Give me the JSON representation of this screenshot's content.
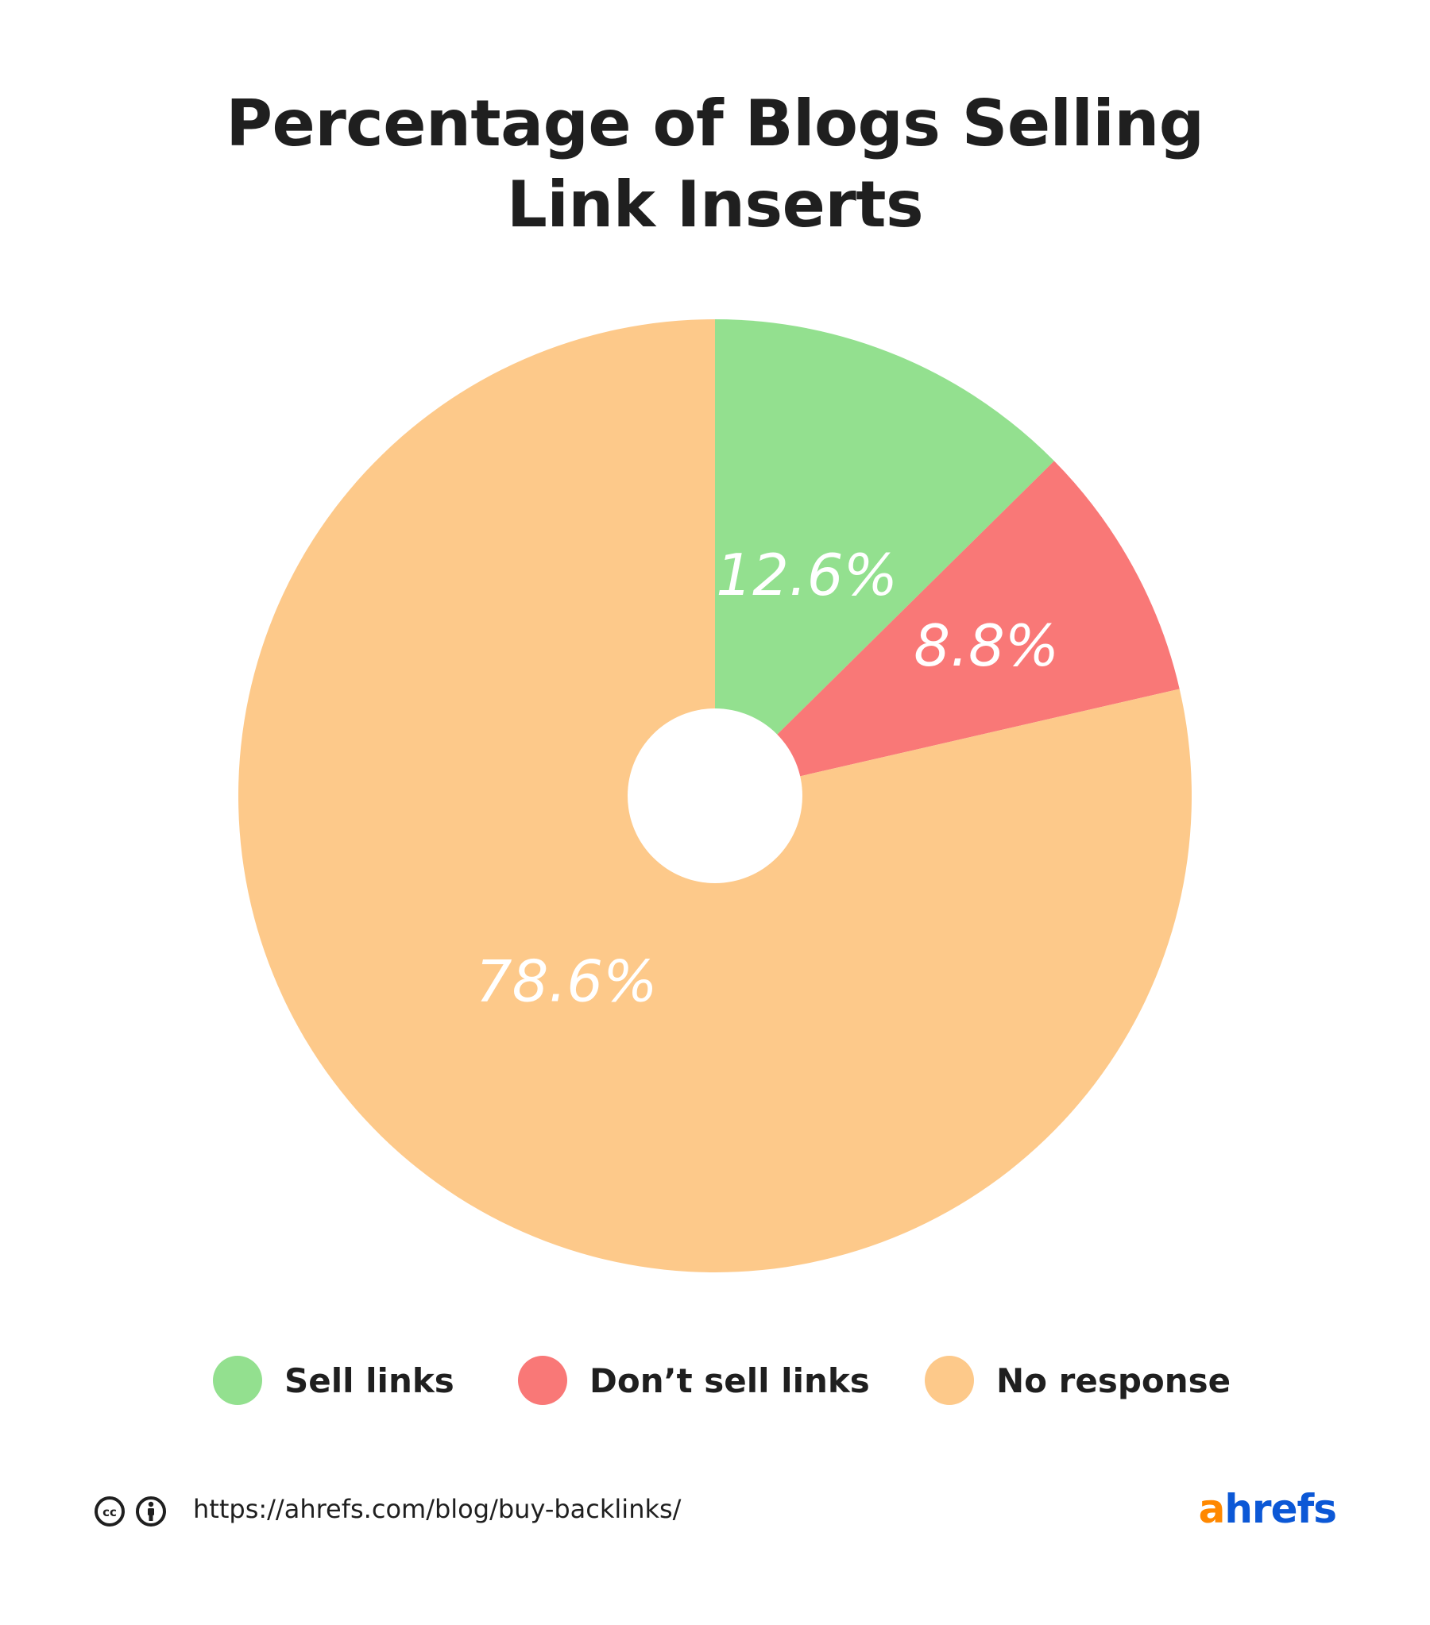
{
  "title_lines": [
    "Percentage of Blogs Selling",
    "Link Inserts"
  ],
  "chart_data": {
    "type": "pie",
    "variant": "donut",
    "title": "Percentage of Blogs Selling Link Inserts",
    "start_angle": "top (12 o'clock), clockwise",
    "slices": [
      {
        "name": "Sell links",
        "value": 12.6,
        "label": "12.6%",
        "color": "#93e08f"
      },
      {
        "name": "Don’t sell links",
        "value": 8.8,
        "label": "8.8%",
        "color": "#f97877"
      },
      {
        "name": "No response",
        "value": 78.6,
        "label": "78.6%",
        "color": "#fdc98a"
      }
    ],
    "legend_position": "bottom"
  },
  "legend": {
    "items": [
      {
        "label": "Sell links",
        "color": "#93e08f"
      },
      {
        "label": "Don’t sell links",
        "color": "#f97877"
      },
      {
        "label": "No response",
        "color": "#fdc98a"
      }
    ]
  },
  "footer": {
    "url": "https://ahrefs.com/blog/buy-backlinks/",
    "license_icons": [
      "creative-commons-icon",
      "attribution-person-icon"
    ],
    "brand_logo": {
      "prefix": "a",
      "rest": "hrefs"
    },
    "brand_colors": {
      "prefix": "#ff8800",
      "rest": "#0c58d6"
    }
  }
}
